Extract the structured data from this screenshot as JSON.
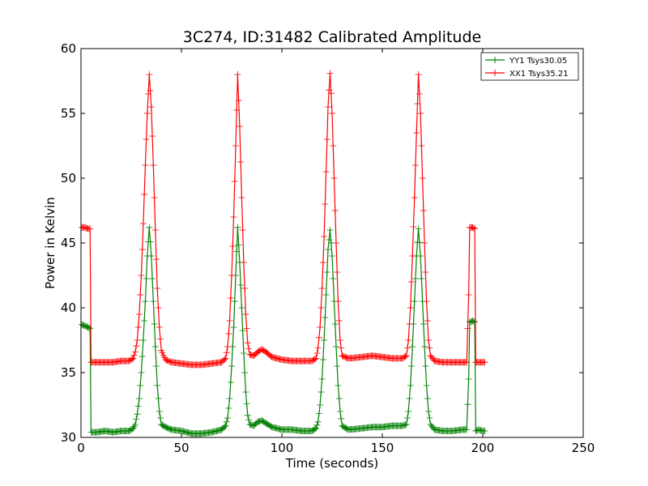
{
  "chart_data": {
    "type": "line",
    "title": "3C274, ID:31482 Calibrated Amplitude",
    "xlabel": "Time (seconds)",
    "ylabel": "Power in Kelvin",
    "xlim": [
      0,
      250
    ],
    "ylim": [
      30,
      60
    ],
    "xticks": [
      0,
      50,
      100,
      150,
      200,
      250
    ],
    "yticks": [
      30,
      35,
      40,
      45,
      50,
      55,
      60
    ],
    "grid": false,
    "legend_position": "top-right",
    "marker": "+",
    "series": [
      {
        "name": "YY1 Tsys30.05",
        "color": "#008000",
        "points": [
          [
            0.5,
            38.7
          ],
          [
            2,
            38.6
          ],
          [
            3.5,
            38.5
          ],
          [
            4.5,
            38.4
          ],
          [
            5,
            30.4
          ],
          [
            8,
            30.4
          ],
          [
            12,
            30.5
          ],
          [
            16,
            30.4
          ],
          [
            20,
            30.5
          ],
          [
            24,
            30.5
          ],
          [
            26,
            30.7
          ],
          [
            27,
            31.0
          ],
          [
            28,
            31.8
          ],
          [
            29,
            33.0
          ],
          [
            30,
            35.0
          ],
          [
            31,
            37.5
          ],
          [
            32,
            40.5
          ],
          [
            33,
            44.0
          ],
          [
            34,
            46.2
          ],
          [
            35,
            44.0
          ],
          [
            36,
            40.5
          ],
          [
            37,
            37.0
          ],
          [
            38,
            34.0
          ],
          [
            39,
            32.0
          ],
          [
            40,
            31.0
          ],
          [
            42,
            30.8
          ],
          [
            45,
            30.6
          ],
          [
            50,
            30.5
          ],
          [
            55,
            30.3
          ],
          [
            60,
            30.3
          ],
          [
            65,
            30.4
          ],
          [
            70,
            30.6
          ],
          [
            72,
            30.9
          ],
          [
            73,
            31.5
          ],
          [
            74,
            33.0
          ],
          [
            75,
            35.5
          ],
          [
            76,
            38.5
          ],
          [
            77,
            42.5
          ],
          [
            78,
            46.2
          ],
          [
            79,
            43.5
          ],
          [
            80,
            40.0
          ],
          [
            81,
            36.5
          ],
          [
            82,
            33.5
          ],
          [
            83,
            31.7
          ],
          [
            84,
            31.0
          ],
          [
            86,
            30.9
          ],
          [
            88,
            31.2
          ],
          [
            90,
            31.3
          ],
          [
            92,
            31.1
          ],
          [
            95,
            30.8
          ],
          [
            100,
            30.6
          ],
          [
            105,
            30.6
          ],
          [
            110,
            30.5
          ],
          [
            115,
            30.5
          ],
          [
            117,
            30.7
          ],
          [
            118,
            31.2
          ],
          [
            119,
            32.5
          ],
          [
            120,
            34.5
          ],
          [
            121,
            37.5
          ],
          [
            122,
            41.0
          ],
          [
            123,
            44.5
          ],
          [
            124,
            46.0
          ],
          [
            125,
            44.0
          ],
          [
            126,
            40.5
          ],
          [
            127,
            37.0
          ],
          [
            128,
            34.0
          ],
          [
            129,
            32.0
          ],
          [
            130,
            30.9
          ],
          [
            133,
            30.6
          ],
          [
            140,
            30.7
          ],
          [
            145,
            30.8
          ],
          [
            150,
            30.8
          ],
          [
            155,
            30.9
          ],
          [
            160,
            30.9
          ],
          [
            162,
            31.0
          ],
          [
            163,
            32.0
          ],
          [
            164,
            34.0
          ],
          [
            165,
            37.0
          ],
          [
            166,
            40.5
          ],
          [
            167,
            44.0
          ],
          [
            168,
            46.1
          ],
          [
            169,
            44.0
          ],
          [
            170,
            40.5
          ],
          [
            171,
            37.0
          ],
          [
            172,
            34.0
          ],
          [
            173,
            32.0
          ],
          [
            174,
            31.0
          ],
          [
            176,
            30.6
          ],
          [
            180,
            30.5
          ],
          [
            185,
            30.5
          ],
          [
            190,
            30.6
          ],
          [
            192,
            30.6
          ],
          [
            193,
            34.5
          ],
          [
            193.5,
            38.9
          ],
          [
            195,
            39.0
          ],
          [
            196,
            38.9
          ],
          [
            196.5,
            30.5
          ],
          [
            198,
            30.6
          ],
          [
            200,
            30.5
          ],
          [
            201,
            30.5
          ]
        ]
      },
      {
        "name": "XX1 Tsys35.21",
        "color": "#ff0000",
        "points": [
          [
            0.5,
            46.2
          ],
          [
            2,
            46.2
          ],
          [
            3.5,
            46.1
          ],
          [
            4.5,
            46.1
          ],
          [
            5,
            35.8
          ],
          [
            8,
            35.8
          ],
          [
            12,
            35.8
          ],
          [
            16,
            35.8
          ],
          [
            20,
            35.9
          ],
          [
            24,
            35.9
          ],
          [
            26,
            36.1
          ],
          [
            27,
            36.6
          ],
          [
            28,
            37.5
          ],
          [
            29,
            39.5
          ],
          [
            30,
            42.5
          ],
          [
            31,
            46.5
          ],
          [
            32,
            51.0
          ],
          [
            33,
            55.0
          ],
          [
            34,
            58.0
          ],
          [
            35,
            55.5
          ],
          [
            36,
            51.0
          ],
          [
            37,
            46.0
          ],
          [
            38,
            41.5
          ],
          [
            39,
            38.5
          ],
          [
            40,
            36.7
          ],
          [
            42,
            36.0
          ],
          [
            45,
            35.8
          ],
          [
            50,
            35.7
          ],
          [
            55,
            35.6
          ],
          [
            60,
            35.6
          ],
          [
            65,
            35.7
          ],
          [
            70,
            35.8
          ],
          [
            72,
            36.1
          ],
          [
            73,
            37.0
          ],
          [
            74,
            39.0
          ],
          [
            75,
            42.5
          ],
          [
            76,
            47.0
          ],
          [
            77,
            52.5
          ],
          [
            78,
            58.0
          ],
          [
            79,
            54.0
          ],
          [
            80,
            48.5
          ],
          [
            81,
            43.5
          ],
          [
            82,
            39.5
          ],
          [
            83,
            37.3
          ],
          [
            84,
            36.4
          ],
          [
            86,
            36.3
          ],
          [
            88,
            36.6
          ],
          [
            90,
            36.8
          ],
          [
            92,
            36.6
          ],
          [
            95,
            36.2
          ],
          [
            100,
            36.0
          ],
          [
            105,
            35.9
          ],
          [
            110,
            35.9
          ],
          [
            115,
            35.9
          ],
          [
            117,
            36.1
          ],
          [
            118,
            36.9
          ],
          [
            119,
            38.5
          ],
          [
            120,
            41.5
          ],
          [
            121,
            45.5
          ],
          [
            122,
            50.5
          ],
          [
            123,
            55.5
          ],
          [
            124,
            58.1
          ],
          [
            125,
            55.0
          ],
          [
            126,
            50.0
          ],
          [
            127,
            45.0
          ],
          [
            128,
            40.5
          ],
          [
            129,
            37.5
          ],
          [
            130,
            36.3
          ],
          [
            133,
            36.1
          ],
          [
            140,
            36.2
          ],
          [
            145,
            36.3
          ],
          [
            150,
            36.2
          ],
          [
            155,
            36.1
          ],
          [
            160,
            36.1
          ],
          [
            162,
            36.3
          ],
          [
            163,
            37.5
          ],
          [
            164,
            40.0
          ],
          [
            165,
            44.0
          ],
          [
            166,
            48.5
          ],
          [
            167,
            53.5
          ],
          [
            168,
            58.0
          ],
          [
            169,
            55.0
          ],
          [
            170,
            50.0
          ],
          [
            171,
            45.0
          ],
          [
            172,
            40.5
          ],
          [
            173,
            37.5
          ],
          [
            174,
            36.3
          ],
          [
            176,
            35.9
          ],
          [
            180,
            35.8
          ],
          [
            185,
            35.8
          ],
          [
            190,
            35.8
          ],
          [
            192,
            35.8
          ],
          [
            193,
            41.0
          ],
          [
            193.5,
            46.2
          ],
          [
            195,
            46.2
          ],
          [
            196,
            46.1
          ],
          [
            196.5,
            35.8
          ],
          [
            198,
            35.8
          ],
          [
            200,
            35.8
          ],
          [
            201,
            35.8
          ]
        ]
      }
    ]
  }
}
